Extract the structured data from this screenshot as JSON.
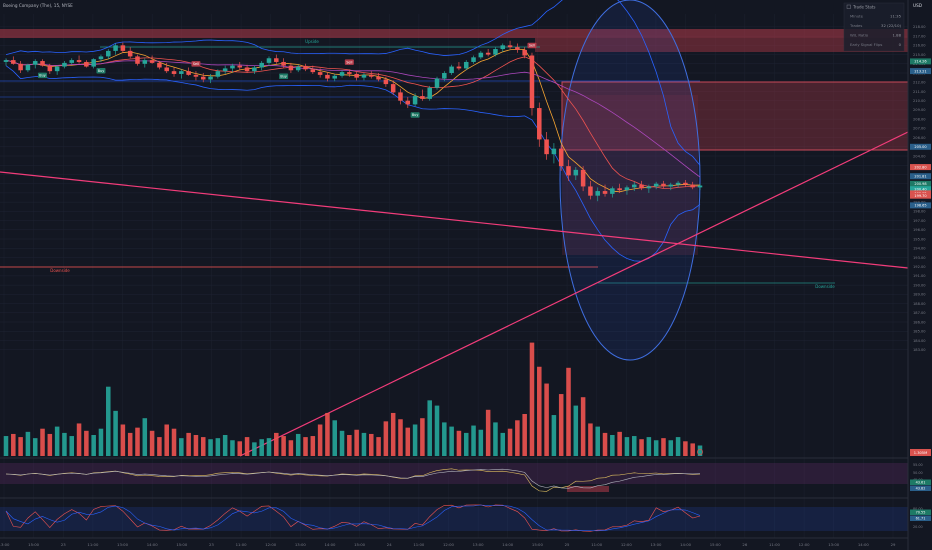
{
  "header": {
    "title": "Boeing Company (The), 15, NYSE",
    "currency": "USD"
  },
  "stats_panel": {
    "title": "Trade Stats",
    "rows": [
      {
        "label": "Minute",
        "value": "11:35"
      },
      {
        "label": "Trades",
        "value": "32 (22/10)"
      },
      {
        "label": "W/L Ratio",
        "value": "1.88"
      },
      {
        "label": "Early Signal Flips",
        "value": "0"
      }
    ]
  },
  "zone_labels": {
    "upper": "Upside",
    "lower": "Downside",
    "lower_right": "Downside"
  },
  "signal_labels": {
    "buy": "Buy",
    "sell": "Sell"
  },
  "colors": {
    "background": "#131722",
    "up": "#26a69a",
    "down": "#ef5350",
    "trendline": "#f23c7a",
    "band": "#2962ff",
    "resistance_zone": "#b23a48",
    "grid": "#1f2433"
  },
  "chart_data": {
    "type": "candlestick",
    "price_axis": {
      "ylim": [
        183.4,
        219.4
      ],
      "ticks": [
        "182.00",
        "183.00",
        "184.00",
        "185.00",
        "186.00",
        "187.00",
        "188.00",
        "189.00",
        "190.00",
        "191.00",
        "192.00",
        "193.00",
        "194.00",
        "195.00",
        "196.00",
        "197.00",
        "198.00",
        "199.00",
        "200.00",
        "201.00",
        "202.00",
        "203.00",
        "204.00",
        "205.00",
        "206.00",
        "207.00",
        "208.00",
        "209.00",
        "210.00",
        "211.00",
        "212.00",
        "213.00",
        "214.00",
        "215.00",
        "216.00",
        "217.00",
        "218.00",
        "219.00"
      ],
      "tick_labels_shown": [
        "183.00",
        "184.00",
        "185.00",
        "186.00",
        "187.00",
        "188.00",
        "189.00",
        "190.00",
        "191.00",
        "192.00",
        "193.00",
        "194.00",
        "195.00",
        "196.00",
        "197.00",
        "198.00",
        "199.00",
        "200.00",
        "201.00",
        "202.00",
        "203.00",
        "204.00",
        "205.00",
        "206.00",
        "207.00",
        "208.00",
        "209.00",
        "210.00",
        "211.00",
        "212.00",
        "213.00",
        "214.00",
        "215.00",
        "216.00",
        "217.00",
        "218.00"
      ],
      "price_badges": [
        {
          "value": "214.26",
          "color": "#1e7a66"
        },
        {
          "value": "213.21",
          "color": "#2a5f8a"
        },
        {
          "value": "205.00",
          "color": "#2a5f8a"
        },
        {
          "value": "202.80",
          "color": "#d9534f"
        },
        {
          "value": "201.81",
          "color": "#2a5f8a"
        },
        {
          "value": "200.98",
          "color": "#1e7a66"
        },
        {
          "value": "200.40",
          "color": "#26a69a"
        },
        {
          "value": "199.95",
          "color": "#d9534f"
        },
        {
          "value": "199.70",
          "color": "#d9534f"
        },
        {
          "value": "198.65",
          "color": "#2a5f8a"
        }
      ]
    },
    "time_axis": {
      "labels": [
        "13:00",
        "15:00",
        "23",
        "11:00",
        "13:00",
        "14:00",
        "15:00",
        "23",
        "11:00",
        "12:00",
        "13:00",
        "14:00",
        "15:00",
        "24",
        "11:00",
        "12:00",
        "13:00",
        "14:00",
        "15:00",
        "25",
        "11:00",
        "12:00",
        "13:00",
        "14:00",
        "15:00",
        "26",
        "11:00",
        "12:00",
        "13:00",
        "14:00",
        "29"
      ]
    },
    "volume_scale_label": "1.305M",
    "oscillator_1": {
      "levels": [
        "55.00",
        "50.00",
        "45.00"
      ],
      "badges": [
        "43.61",
        "43.82"
      ]
    },
    "oscillator_2": {
      "levels": [
        "80.00",
        "50.00",
        "20.00"
      ],
      "badges": [
        "70.55",
        "61.71"
      ]
    },
    "ohlc": [
      [
        214.2,
        214.6,
        213.8,
        214.4
      ],
      [
        214.4,
        214.8,
        213.9,
        214.0
      ],
      [
        214.0,
        214.3,
        213.0,
        213.3
      ],
      [
        213.3,
        214.0,
        213.1,
        213.9
      ],
      [
        213.9,
        214.5,
        213.5,
        214.3
      ],
      [
        214.3,
        214.5,
        213.7,
        213.8
      ],
      [
        213.8,
        214.0,
        212.9,
        213.2
      ],
      [
        213.2,
        213.8,
        212.8,
        213.7
      ],
      [
        213.7,
        214.3,
        213.5,
        214.1
      ],
      [
        214.1,
        214.6,
        213.9,
        214.4
      ],
      [
        214.4,
        214.9,
        214.0,
        214.2
      ],
      [
        214.2,
        214.4,
        213.6,
        213.7
      ],
      [
        213.7,
        214.6,
        213.5,
        214.5
      ],
      [
        214.5,
        215.0,
        214.2,
        214.8
      ],
      [
        214.8,
        215.6,
        214.5,
        215.4
      ],
      [
        215.4,
        216.2,
        215.0,
        216.0
      ],
      [
        216.0,
        216.3,
        215.2,
        215.4
      ],
      [
        215.4,
        215.8,
        214.6,
        214.8
      ],
      [
        214.8,
        215.0,
        213.8,
        214.0
      ],
      [
        214.0,
        214.6,
        213.6,
        214.4
      ],
      [
        214.4,
        214.9,
        214.0,
        214.1
      ],
      [
        214.1,
        214.3,
        213.4,
        213.6
      ],
      [
        213.6,
        214.1,
        213.0,
        213.2
      ],
      [
        213.2,
        213.6,
        212.6,
        212.9
      ],
      [
        212.9,
        213.4,
        212.4,
        213.2
      ],
      [
        213.2,
        213.6,
        212.7,
        212.8
      ],
      [
        212.8,
        213.2,
        212.2,
        212.6
      ],
      [
        212.6,
        213.0,
        212.0,
        212.3
      ],
      [
        212.3,
        212.9,
        211.9,
        212.6
      ],
      [
        212.6,
        213.4,
        212.4,
        213.2
      ],
      [
        213.2,
        213.8,
        212.9,
        213.5
      ],
      [
        213.5,
        214.0,
        213.1,
        213.8
      ],
      [
        213.8,
        214.2,
        213.3,
        213.6
      ],
      [
        213.6,
        213.9,
        213.0,
        213.2
      ],
      [
        213.2,
        213.8,
        212.9,
        213.6
      ],
      [
        213.6,
        214.3,
        213.3,
        214.1
      ],
      [
        214.1,
        214.8,
        213.8,
        214.6
      ],
      [
        214.6,
        215.0,
        214.0,
        214.2
      ],
      [
        214.2,
        214.6,
        213.6,
        213.8
      ],
      [
        213.8,
        214.1,
        213.0,
        213.3
      ],
      [
        213.3,
        213.9,
        213.1,
        213.7
      ],
      [
        213.7,
        214.0,
        213.2,
        213.4
      ],
      [
        213.4,
        213.8,
        212.9,
        213.1
      ],
      [
        213.1,
        213.5,
        212.5,
        212.8
      ],
      [
        212.8,
        213.1,
        212.1,
        212.4
      ],
      [
        212.4,
        212.9,
        212.1,
        212.7
      ],
      [
        212.7,
        213.3,
        212.5,
        213.1
      ],
      [
        213.1,
        213.4,
        212.6,
        212.9
      ],
      [
        212.9,
        213.1,
        212.2,
        212.5
      ],
      [
        212.5,
        213.0,
        212.2,
        212.8
      ],
      [
        212.8,
        213.2,
        212.4,
        212.6
      ],
      [
        212.6,
        213.0,
        212.1,
        212.3
      ],
      [
        212.3,
        212.6,
        211.5,
        211.8
      ],
      [
        211.8,
        212.2,
        210.6,
        210.9
      ],
      [
        210.9,
        211.3,
        209.6,
        210.0
      ],
      [
        210.0,
        210.4,
        209.2,
        209.6
      ],
      [
        209.6,
        210.8,
        209.4,
        210.5
      ],
      [
        210.5,
        211.2,
        210.0,
        210.2
      ],
      [
        210.2,
        211.6,
        210.0,
        211.4
      ],
      [
        211.4,
        212.6,
        211.2,
        212.4
      ],
      [
        212.4,
        213.2,
        212.1,
        213.0
      ],
      [
        213.0,
        213.9,
        212.8,
        213.7
      ],
      [
        213.7,
        214.2,
        213.3,
        213.5
      ],
      [
        213.5,
        214.4,
        213.3,
        214.2
      ],
      [
        214.2,
        214.9,
        214.0,
        214.7
      ],
      [
        214.7,
        215.4,
        214.5,
        215.2
      ],
      [
        215.2,
        215.6,
        214.8,
        215.0
      ],
      [
        215.0,
        215.8,
        214.8,
        215.6
      ],
      [
        215.6,
        216.2,
        215.3,
        216.0
      ],
      [
        216.0,
        216.5,
        215.6,
        215.8
      ],
      [
        215.8,
        216.2,
        215.2,
        215.5
      ],
      [
        215.5,
        215.8,
        214.6,
        214.9
      ],
      [
        214.9,
        215.2,
        208.4,
        209.2
      ],
      [
        209.2,
        209.8,
        205.0,
        205.8
      ],
      [
        205.8,
        206.6,
        203.6,
        204.2
      ],
      [
        204.2,
        205.4,
        203.2,
        204.8
      ],
      [
        204.8,
        205.2,
        202.4,
        202.9
      ],
      [
        202.9,
        203.6,
        201.3,
        201.9
      ],
      [
        201.9,
        202.8,
        201.4,
        202.5
      ],
      [
        202.5,
        202.9,
        200.2,
        200.7
      ],
      [
        200.7,
        201.3,
        199.3,
        199.7
      ],
      [
        199.7,
        200.6,
        199.1,
        200.2
      ],
      [
        200.2,
        200.9,
        199.6,
        199.9
      ],
      [
        199.9,
        200.7,
        199.5,
        200.5
      ],
      [
        200.5,
        201.0,
        200.0,
        200.3
      ],
      [
        200.3,
        200.8,
        199.8,
        200.6
      ],
      [
        200.6,
        201.2,
        200.2,
        200.9
      ],
      [
        200.9,
        201.3,
        200.3,
        200.5
      ],
      [
        200.5,
        200.9,
        200.0,
        200.7
      ],
      [
        200.7,
        201.2,
        200.4,
        201.0
      ],
      [
        201.0,
        201.3,
        200.5,
        200.7
      ],
      [
        200.7,
        201.1,
        200.3,
        200.9
      ],
      [
        200.9,
        201.3,
        200.6,
        201.1
      ],
      [
        201.1,
        201.4,
        200.7,
        200.9
      ],
      [
        200.9,
        201.2,
        200.4,
        200.6
      ],
      [
        200.6,
        201.0,
        200.3,
        200.8
      ]
    ],
    "volume_millions": [
      0.19,
      0.21,
      0.18,
      0.23,
      0.17,
      0.26,
      0.21,
      0.28,
      0.22,
      0.19,
      0.31,
      0.24,
      0.2,
      0.26,
      0.66,
      0.43,
      0.3,
      0.22,
      0.27,
      0.36,
      0.24,
      0.18,
      0.3,
      0.26,
      0.17,
      0.22,
      0.2,
      0.18,
      0.16,
      0.17,
      0.2,
      0.15,
      0.14,
      0.18,
      0.13,
      0.16,
      0.17,
      0.22,
      0.19,
      0.15,
      0.21,
      0.18,
      0.19,
      0.3,
      0.41,
      0.34,
      0.24,
      0.2,
      0.25,
      0.22,
      0.21,
      0.18,
      0.33,
      0.41,
      0.35,
      0.27,
      0.3,
      0.36,
      0.53,
      0.48,
      0.32,
      0.28,
      0.24,
      0.22,
      0.29,
      0.25,
      0.44,
      0.32,
      0.22,
      0.26,
      0.34,
      0.4,
      1.08,
      0.85,
      0.69,
      0.39,
      0.59,
      0.84,
      0.48,
      0.56,
      0.31,
      0.28,
      0.22,
      0.2,
      0.23,
      0.18,
      0.19,
      0.16,
      0.18,
      0.15,
      0.17,
      0.15,
      0.18,
      0.14,
      0.12,
      0.1
    ],
    "volume_max_millions": 1.2
  }
}
